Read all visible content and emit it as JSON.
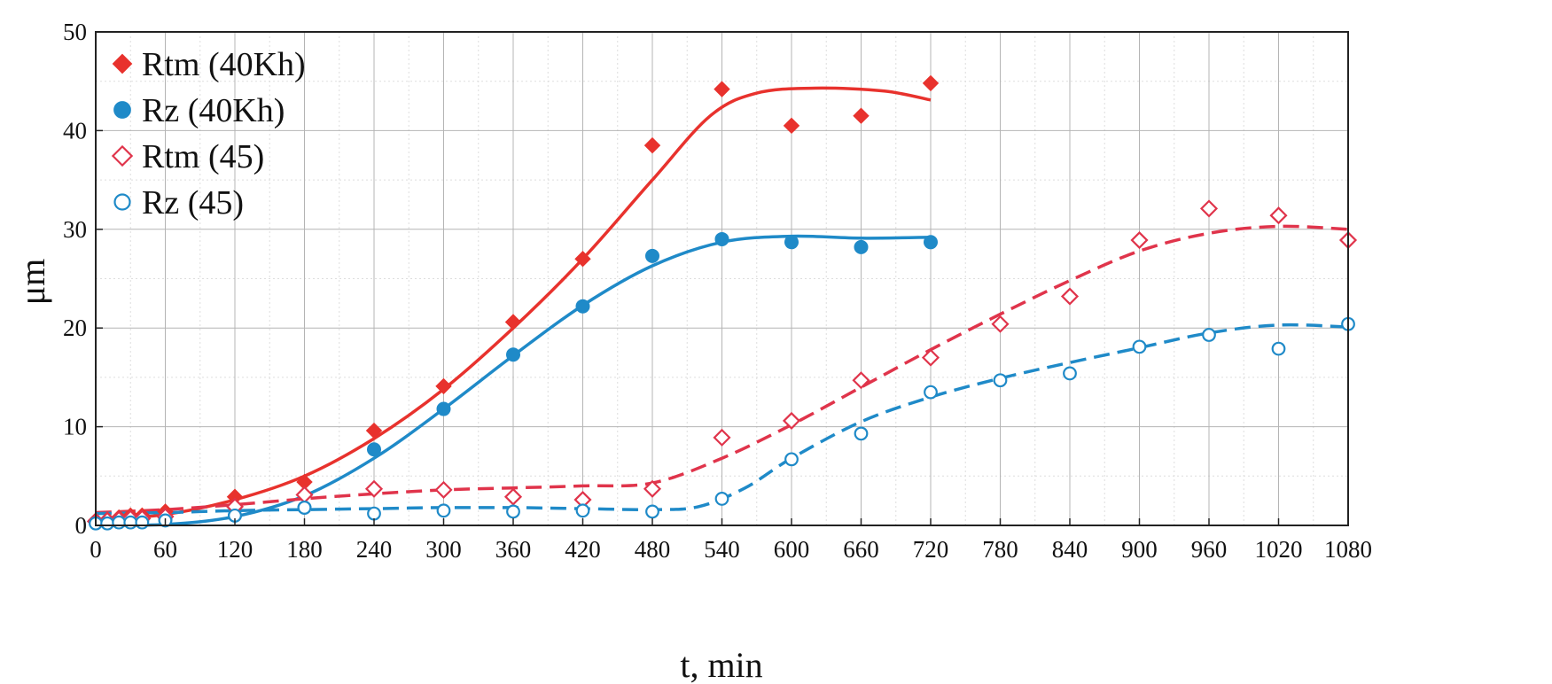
{
  "chart_data": {
    "type": "scatter",
    "title": "",
    "xlabel": "t, min",
    "ylabel": "μm",
    "xlim": [
      0,
      1080
    ],
    "ylim": [
      0,
      50
    ],
    "xticks": [
      "0",
      "60",
      "120",
      "180",
      "240",
      "300",
      "360",
      "420",
      "480",
      "540",
      "600",
      "660",
      "720",
      "780",
      "840",
      "900",
      "960",
      "1020",
      "1080"
    ],
    "yticks": [
      "0",
      "10",
      "20",
      "30",
      "40",
      "50"
    ],
    "x_tick_values": [
      0,
      60,
      120,
      180,
      240,
      300,
      360,
      420,
      480,
      540,
      600,
      660,
      720,
      780,
      840,
      900,
      960,
      1020,
      1080
    ],
    "y_tick_values": [
      0,
      10,
      20,
      30,
      40,
      50
    ],
    "grid": true,
    "legend_position": "top-left",
    "series": [
      {
        "name": "Rtm (40Kh)",
        "color": "#e8322d",
        "marker": "diamond-filled",
        "points": [
          [
            0,
            0.5
          ],
          [
            10,
            0.6
          ],
          [
            20,
            0.8
          ],
          [
            30,
            1.0
          ],
          [
            40,
            1.0
          ],
          [
            60,
            1.4
          ],
          [
            120,
            2.9
          ],
          [
            180,
            4.4
          ],
          [
            240,
            9.6
          ],
          [
            300,
            14.1
          ],
          [
            360,
            20.6
          ],
          [
            420,
            27.0
          ],
          [
            480,
            38.5
          ],
          [
            540,
            44.2
          ],
          [
            600,
            40.5
          ],
          [
            660,
            41.5
          ],
          [
            720,
            44.8
          ]
        ],
        "fit": {
          "style": "solid",
          "points": [
            [
              0,
              0.5
            ],
            [
              60,
              1.1
            ],
            [
              120,
              2.6
            ],
            [
              180,
              5.0
            ],
            [
              240,
              8.8
            ],
            [
              300,
              13.8
            ],
            [
              360,
              20.0
            ],
            [
              420,
              27.0
            ],
            [
              480,
              35.0
            ],
            [
              530,
              41.5
            ],
            [
              570,
              43.8
            ],
            [
              620,
              44.3
            ],
            [
              680,
              44.0
            ],
            [
              720,
              43.1
            ]
          ]
        }
      },
      {
        "name": "Rz (40Kh)",
        "color": "#1f8ac8",
        "marker": "circle-filled",
        "points": [
          [
            0,
            0.3
          ],
          [
            10,
            0.4
          ],
          [
            20,
            0.5
          ],
          [
            30,
            0.5
          ],
          [
            40,
            0.5
          ],
          [
            60,
            0.6
          ],
          [
            120,
            1.0
          ],
          [
            180,
            1.8
          ],
          [
            240,
            7.7
          ],
          [
            300,
            11.8
          ],
          [
            360,
            17.3
          ],
          [
            420,
            22.2
          ],
          [
            480,
            27.3
          ],
          [
            540,
            29.0
          ],
          [
            600,
            28.7
          ],
          [
            660,
            28.2
          ],
          [
            720,
            28.7
          ]
        ],
        "fit": {
          "style": "solid",
          "points": [
            [
              0,
              0.0
            ],
            [
              60,
              0.1
            ],
            [
              120,
              0.9
            ],
            [
              180,
              3.0
            ],
            [
              240,
              6.8
            ],
            [
              300,
              11.8
            ],
            [
              360,
              17.2
            ],
            [
              420,
              22.3
            ],
            [
              480,
              26.3
            ],
            [
              540,
              28.7
            ],
            [
              600,
              29.3
            ],
            [
              660,
              29.1
            ],
            [
              720,
              29.2
            ]
          ]
        }
      },
      {
        "name": "Rtm (45)",
        "color": "#e0344b",
        "marker": "diamond-open",
        "points": [
          [
            0,
            0.4
          ],
          [
            10,
            0.5
          ],
          [
            20,
            0.6
          ],
          [
            30,
            0.7
          ],
          [
            40,
            0.7
          ],
          [
            60,
            0.9
          ],
          [
            120,
            1.9
          ],
          [
            180,
            3.1
          ],
          [
            240,
            3.7
          ],
          [
            300,
            3.6
          ],
          [
            360,
            2.9
          ],
          [
            420,
            2.6
          ],
          [
            480,
            3.7
          ],
          [
            540,
            8.9
          ],
          [
            600,
            10.6
          ],
          [
            660,
            14.7
          ],
          [
            720,
            17.0
          ],
          [
            780,
            20.4
          ],
          [
            840,
            23.2
          ],
          [
            900,
            28.9
          ],
          [
            960,
            32.1
          ],
          [
            1020,
            31.4
          ],
          [
            1080,
            28.9
          ]
        ],
        "fit": {
          "style": "dashed",
          "points": [
            [
              0,
              1.3
            ],
            [
              60,
              1.6
            ],
            [
              120,
              2.1
            ],
            [
              180,
              2.7
            ],
            [
              240,
              3.2
            ],
            [
              300,
              3.6
            ],
            [
              360,
              3.8
            ],
            [
              420,
              4.0
            ],
            [
              480,
              4.3
            ],
            [
              540,
              6.8
            ],
            [
              600,
              10.2
            ],
            [
              660,
              14.0
            ],
            [
              720,
              17.8
            ],
            [
              780,
              21.4
            ],
            [
              840,
              24.8
            ],
            [
              900,
              27.8
            ],
            [
              960,
              29.6
            ],
            [
              1020,
              30.3
            ],
            [
              1080,
              30.0
            ]
          ]
        }
      },
      {
        "name": "Rz (45)",
        "color": "#1f8ac8",
        "marker": "circle-open",
        "points": [
          [
            0,
            0.2
          ],
          [
            10,
            0.2
          ],
          [
            20,
            0.3
          ],
          [
            30,
            0.3
          ],
          [
            40,
            0.3
          ],
          [
            60,
            0.5
          ],
          [
            120,
            1.0
          ],
          [
            180,
            1.8
          ],
          [
            240,
            1.2
          ],
          [
            300,
            1.5
          ],
          [
            360,
            1.4
          ],
          [
            420,
            1.5
          ],
          [
            480,
            1.4
          ],
          [
            540,
            2.7
          ],
          [
            600,
            6.7
          ],
          [
            660,
            9.3
          ],
          [
            720,
            13.5
          ],
          [
            780,
            14.7
          ],
          [
            840,
            15.4
          ],
          [
            900,
            18.1
          ],
          [
            960,
            19.3
          ],
          [
            1020,
            17.9
          ],
          [
            1080,
            20.4
          ]
        ],
        "fit": {
          "style": "dashed",
          "points": [
            [
              0,
              1.2
            ],
            [
              60,
              1.3
            ],
            [
              120,
              1.5
            ],
            [
              180,
              1.6
            ],
            [
              240,
              1.7
            ],
            [
              300,
              1.8
            ],
            [
              360,
              1.8
            ],
            [
              420,
              1.7
            ],
            [
              480,
              1.6
            ],
            [
              520,
              1.9
            ],
            [
              560,
              3.8
            ],
            [
              600,
              6.8
            ],
            [
              660,
              10.5
            ],
            [
              720,
              13.0
            ],
            [
              780,
              14.9
            ],
            [
              840,
              16.5
            ],
            [
              900,
              18.0
            ],
            [
              960,
              19.5
            ],
            [
              1020,
              20.3
            ],
            [
              1080,
              20.1
            ]
          ]
        }
      }
    ]
  }
}
